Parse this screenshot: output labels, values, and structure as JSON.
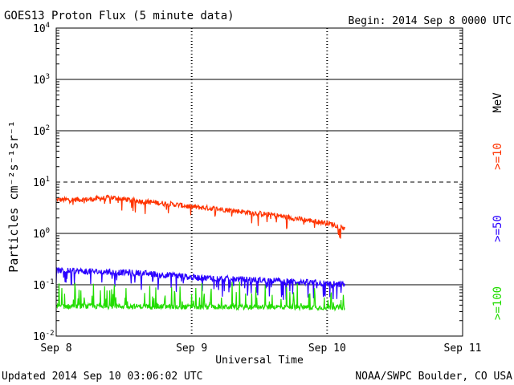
{
  "title": "GOES13 Proton Flux (5 minute data)",
  "begin_label": "Begin: 2014 Sep 8 0000 UTC",
  "updated_label": "Updated 2014 Sep 10 03:06:02 UTC",
  "credit": "NOAA/SWPC Boulder, CO USA",
  "chart_data": {
    "type": "line",
    "title": "GOES13 Proton Flux (5 minute data)",
    "xlabel": "Universal Time",
    "ylabel": "Particles cm⁻²s⁻¹sr⁻¹",
    "yscale": "log",
    "ylim": [
      0.01,
      10000
    ],
    "xlim_days": [
      0,
      3
    ],
    "x_tick_labels": [
      "Sep 8",
      "Sep 9",
      "Sep 10",
      "Sep 11"
    ],
    "x_tick_days": [
      0,
      1,
      2,
      3
    ],
    "y_tick_exponents": [
      4,
      3,
      2,
      1,
      0,
      -1,
      -2
    ],
    "reference_lines": [
      {
        "value": 10,
        "style": "dashed"
      },
      {
        "value": 1,
        "style": "solid"
      },
      {
        "value": 0.1,
        "style": "solid"
      },
      {
        "value": 100,
        "style": "solid"
      },
      {
        "value": 1000,
        "style": "solid"
      }
    ],
    "data_end_day": 2.13,
    "series": [
      {
        "name": ">=10 MeV",
        "legend": ">=10",
        "unit": "MeV",
        "color": "#ff3300",
        "days": [
          0,
          0.25,
          0.4,
          0.6,
          0.9,
          1.0,
          1.2,
          1.4,
          1.6,
          1.8,
          2.0,
          2.13
        ],
        "values": [
          4.5,
          4.6,
          5.0,
          4.3,
          3.6,
          3.3,
          3.0,
          2.6,
          2.3,
          1.9,
          1.6,
          1.3
        ]
      },
      {
        "name": ">=50 MeV",
        "legend": ">=50",
        "color": "#2a00ff",
        "days": [
          0,
          0.3,
          0.6,
          0.9,
          1.0,
          1.3,
          1.6,
          1.9,
          2.13
        ],
        "values": [
          0.19,
          0.18,
          0.17,
          0.15,
          0.14,
          0.13,
          0.12,
          0.11,
          0.1
        ]
      },
      {
        "name": ">=100 MeV",
        "legend": ">=100",
        "color": "#22dd00",
        "days": [
          0,
          0.5,
          1.0,
          1.5,
          2.13
        ],
        "values": [
          0.038,
          0.038,
          0.037,
          0.037,
          0.036
        ]
      }
    ]
  }
}
